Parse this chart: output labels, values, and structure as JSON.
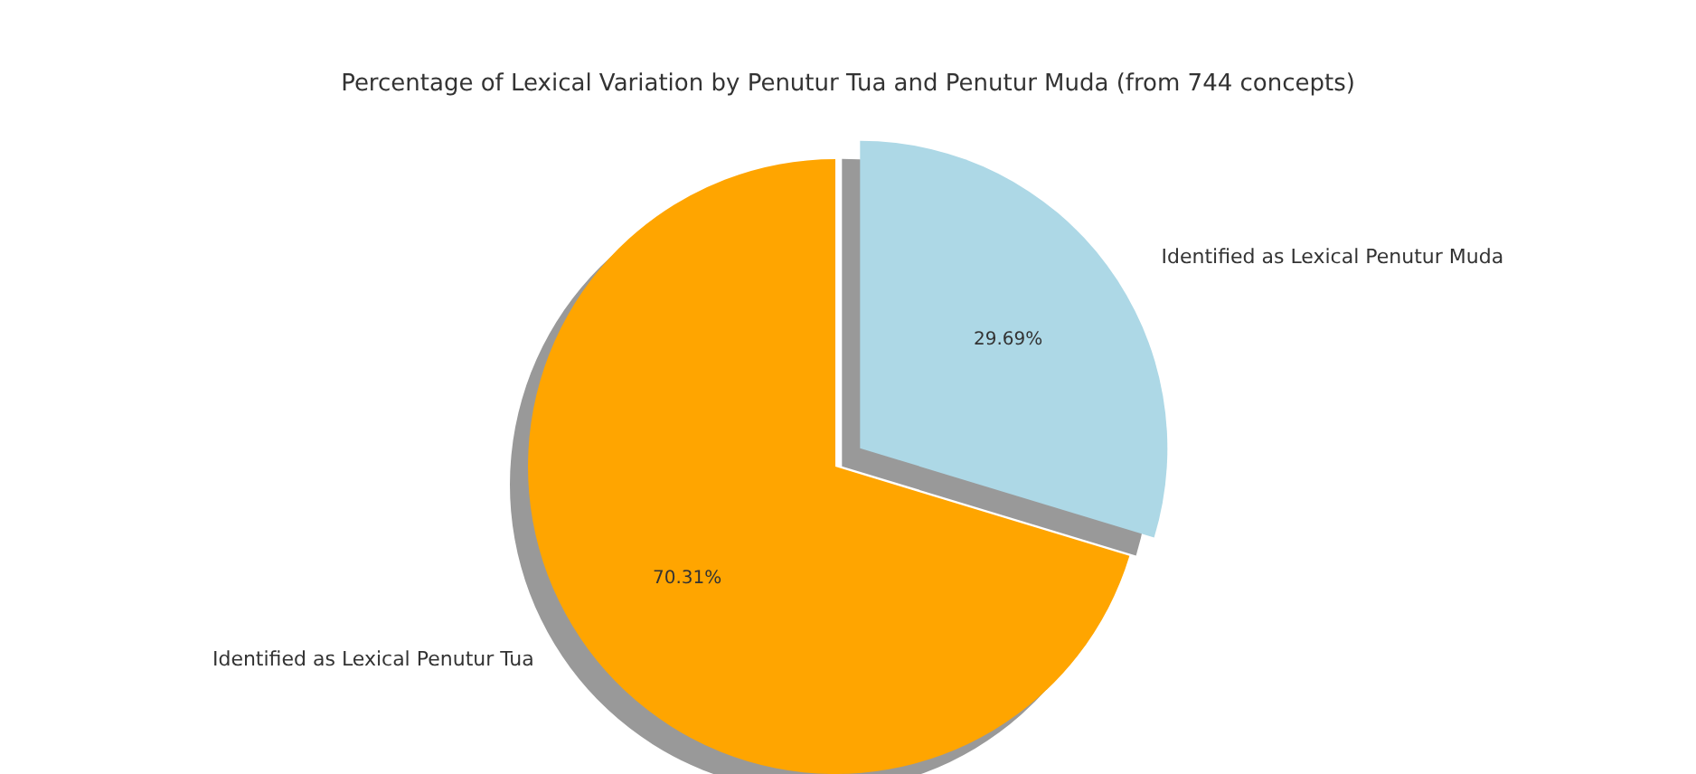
{
  "chart_data": {
    "type": "pie",
    "title": "Percentage of Lexical Variation by Penutur Tua and Penutur Muda (from 744 concepts)",
    "categories": [
      "Identified as Lexical Penutur Tua",
      "Identified as Lexical Penutur Muda"
    ],
    "values": [
      70.31,
      29.69
    ],
    "colors": [
      "#ffa500",
      "#add8e6"
    ],
    "value_labels": [
      "70.31%",
      "29.69%"
    ]
  }
}
